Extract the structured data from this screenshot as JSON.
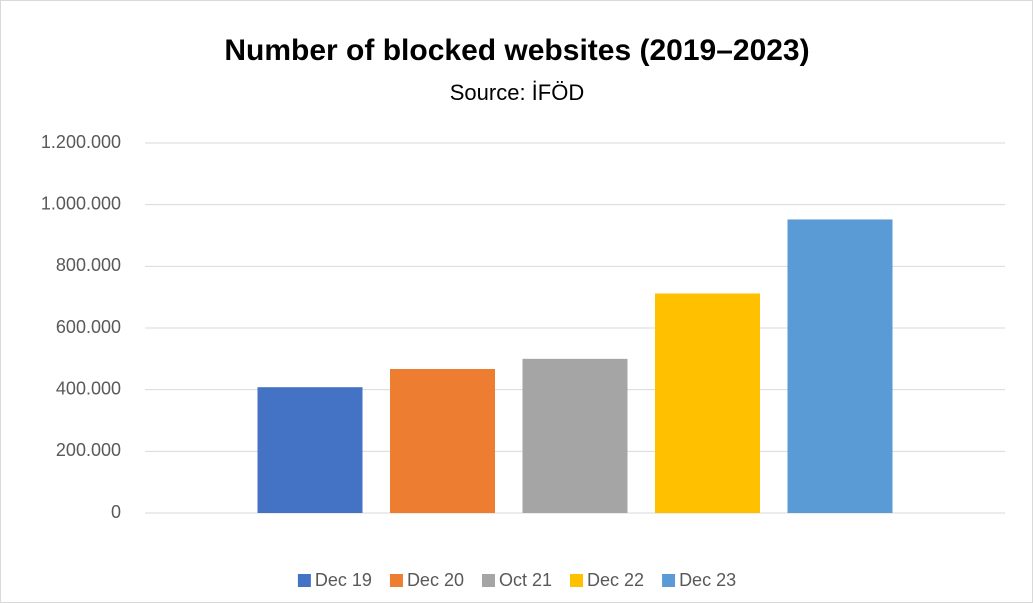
{
  "chart_data": {
    "type": "bar",
    "title": "Number of blocked websites (2019–2023)",
    "subtitle": "Source: İFÖD",
    "categories": [
      null
    ],
    "series": [
      {
        "name": "Dec 19",
        "color": "#4472c4",
        "values": [
          408000
        ]
      },
      {
        "name": "Dec 20",
        "color": "#ed7d31",
        "values": [
          467000
        ]
      },
      {
        "name": "Oct 21",
        "color": "#a5a5a5",
        "values": [
          500000
        ]
      },
      {
        "name": "Dec 22",
        "color": "#ffc000",
        "values": [
          712000
        ]
      },
      {
        "name": "Dec 23",
        "color": "#5b9bd5",
        "values": [
          952000
        ]
      }
    ],
    "ylim": [
      0,
      1200000
    ],
    "yticks": [
      0,
      {
        "value": 200000,
        "label": "200.000"
      },
      {
        "value": 400000,
        "label": "400.000"
      },
      {
        "value": 600000,
        "label": "600.000"
      },
      {
        "value": 800000,
        "label": "800.000"
      },
      {
        "value": 1000000,
        "label": "1.000.000"
      },
      {
        "value": 1200000,
        "label": "1.200.000"
      }
    ],
    "grid": true,
    "legend": "bottom"
  }
}
